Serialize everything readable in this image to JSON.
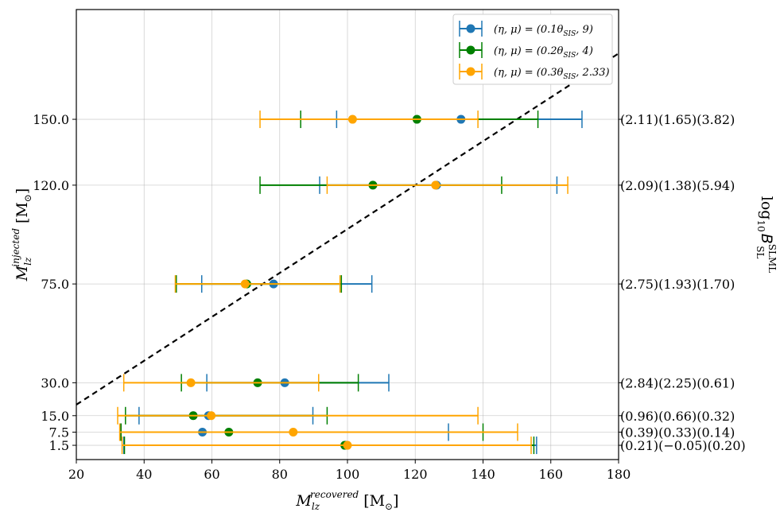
{
  "chart_data": {
    "type": "scatter",
    "title": "",
    "xlabel": {
      "base": "M",
      "sub": "lz",
      "sup": "recovered",
      "unit": "[M",
      "unit_sub": "⊙",
      "unit_close": "]"
    },
    "ylabel": {
      "base": "M",
      "sub": "lz",
      "sup": "injected",
      "unit": "[M",
      "unit_sub": "⊙",
      "unit_close": "]"
    },
    "right_axis_label": {
      "prefix": "log",
      "prefix_sub": "10",
      "base": "B",
      "sup": "SLML",
      "sub": "SL"
    },
    "xlim": [
      20,
      180
    ],
    "ylim": [
      -5,
      200
    ],
    "x_ticks": [
      {
        "v": 20,
        "label": "20"
      },
      {
        "v": 40,
        "label": "40"
      },
      {
        "v": 60,
        "label": "60"
      },
      {
        "v": 80,
        "label": "80"
      },
      {
        "v": 100,
        "label": "100"
      },
      {
        "v": 120,
        "label": "120"
      },
      {
        "v": 140,
        "label": "140"
      },
      {
        "v": 160,
        "label": "160"
      },
      {
        "v": 180,
        "label": "180"
      }
    ],
    "y_ticks": [
      {
        "v": 1.5,
        "label": "1.5"
      },
      {
        "v": 7.5,
        "label": "7.5"
      },
      {
        "v": 15.0,
        "label": "15.0"
      },
      {
        "v": 30.0,
        "label": "30.0"
      },
      {
        "v": 75.0,
        "label": "75.0"
      },
      {
        "v": 120.0,
        "label": "120.0"
      },
      {
        "v": 150.0,
        "label": "150.0"
      }
    ],
    "right_labels": [
      {
        "y": 150.0,
        "label": "(2.11)(1.65)(3.82)"
      },
      {
        "y": 120.0,
        "label": "(2.09)(1.38)(5.94)"
      },
      {
        "y": 75.0,
        "label": "(2.75)(1.93)(1.70)"
      },
      {
        "y": 30.0,
        "label": "(2.84)(2.25)(0.61)"
      },
      {
        "y": 15.0,
        "label": "(0.96)(0.66)(0.32)"
      },
      {
        "y": 7.5,
        "label": "(0.39)(0.33)(0.14)"
      },
      {
        "y": 1.5,
        "label": "(0.21)(−0.05)(0.20)"
      }
    ],
    "diagonal_line": {
      "style": "dashed",
      "color": "#000000",
      "slope": 1,
      "intercept": 0
    },
    "grid": true,
    "legend_position": "upper right",
    "series": [
      {
        "name": "(η, μ) = (0.1θ_SIS, 9)",
        "legend_prefix": "(η, μ) = (0.1θ",
        "legend_sub": "SIS",
        "legend_suffix": ", 9)",
        "color": "#1f77b4",
        "points": [
          {
            "y": 150.0,
            "x": 133.5,
            "lo": 96.8,
            "hi": 169.2
          },
          {
            "y": 120.0,
            "x": 126.3,
            "lo": 91.8,
            "hi": 161.8
          },
          {
            "y": 75.0,
            "x": 78.2,
            "lo": 57.0,
            "hi": 107.2
          },
          {
            "y": 30.0,
            "x": 81.5,
            "lo": 58.5,
            "hi": 112.2
          },
          {
            "y": 15.0,
            "x": 59.0,
            "lo": 38.5,
            "hi": 89.8
          },
          {
            "y": 7.5,
            "x": 57.2,
            "lo": 33.0,
            "hi": 129.8
          },
          {
            "y": 1.5,
            "x": 99.6,
            "lo": 34.0,
            "hi": 155.8
          }
        ]
      },
      {
        "name": "(η, μ) = (0.2θ_SIS, 4)",
        "legend_prefix": "(η, μ) = (0.2θ",
        "legend_sub": "SIS",
        "legend_suffix": ", 4)",
        "color": "#008000",
        "points": [
          {
            "y": 150.0,
            "x": 120.5,
            "lo": 86.2,
            "hi": 156.2
          },
          {
            "y": 120.0,
            "x": 107.5,
            "lo": 74.2,
            "hi": 145.5
          },
          {
            "y": 75.0,
            "x": 70.3,
            "lo": 49.5,
            "hi": 98.2
          },
          {
            "y": 30.0,
            "x": 73.5,
            "lo": 51.0,
            "hi": 103.2
          },
          {
            "y": 15.0,
            "x": 54.5,
            "lo": 34.5,
            "hi": 94.0
          },
          {
            "y": 7.5,
            "x": 65.0,
            "lo": 33.2,
            "hi": 140.0
          },
          {
            "y": 1.5,
            "x": 99.2,
            "lo": 34.2,
            "hi": 155.0
          }
        ]
      },
      {
        "name": "(η, μ) = (0.3θ_SIS, 2.33)",
        "legend_prefix": "(η, μ) = (0.3θ",
        "legend_sub": "SIS",
        "legend_suffix": ", 2.33)",
        "color": "#ffa500",
        "points": [
          {
            "y": 150.0,
            "x": 101.5,
            "lo": 74.2,
            "hi": 138.5
          },
          {
            "y": 120.0,
            "x": 126.0,
            "lo": 94.0,
            "hi": 165.0
          },
          {
            "y": 75.0,
            "x": 69.8,
            "lo": 49.2,
            "hi": 97.8
          },
          {
            "y": 30.0,
            "x": 53.8,
            "lo": 34.0,
            "hi": 91.5
          },
          {
            "y": 15.0,
            "x": 59.8,
            "lo": 32.2,
            "hi": 138.5
          },
          {
            "y": 7.5,
            "x": 84.0,
            "lo": 32.8,
            "hi": 150.2
          },
          {
            "y": 1.5,
            "x": 100.0,
            "lo": 33.5,
            "hi": 154.2
          }
        ]
      }
    ]
  }
}
